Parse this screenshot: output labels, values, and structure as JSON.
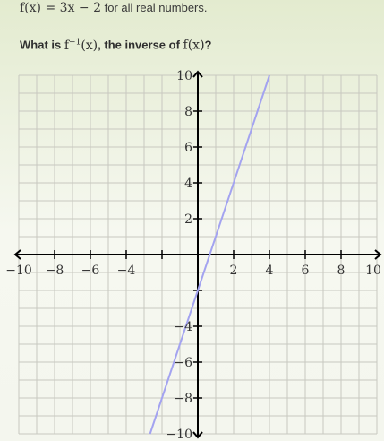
{
  "problem": {
    "definition_math": "f(x) = 3x − 2",
    "definition_text": "for all real numbers.",
    "question_prefix": "What is",
    "question_inverse_math": "f",
    "question_inverse_sup": "−1",
    "question_inverse_arg": "(x)",
    "question_middle": ", the inverse of",
    "question_function_math": "f(x)",
    "question_suffix": "?"
  },
  "chart_data": {
    "type": "line",
    "title": "",
    "xlabel": "",
    "ylabel": "",
    "xlim": [
      -10,
      10
    ],
    "ylim": [
      -10,
      10
    ],
    "grid": true,
    "x_tick_labels": [
      "−10",
      "−8",
      "−6",
      "−4",
      "2",
      "4",
      "6",
      "8",
      "10"
    ],
    "y_tick_labels": [
      "10",
      "8",
      "6",
      "4",
      "2",
      "−4",
      "−6",
      "−8",
      "−10"
    ],
    "series": [
      {
        "x": [
          -2.667,
          4
        ],
        "y": [
          -10,
          10
        ],
        "color": "#a3a3f0"
      }
    ],
    "colors": {
      "grid": "#c8c8c0",
      "axis": "#000000"
    }
  }
}
